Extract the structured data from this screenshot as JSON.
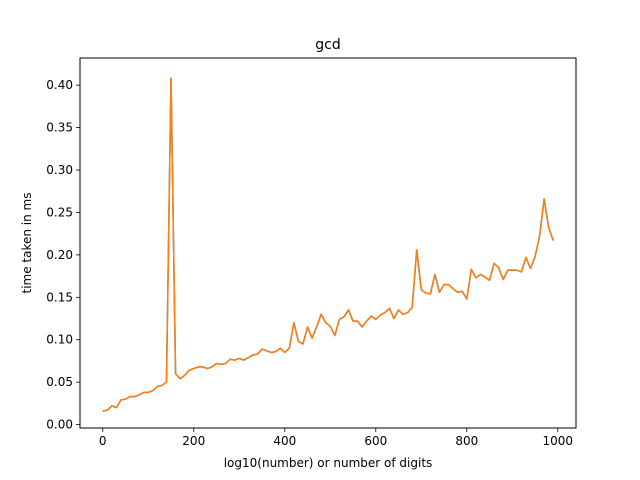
{
  "chart_data": {
    "type": "line",
    "title": "gcd",
    "xlabel": "log10(number) or number of digits",
    "ylabel": "time taken in ms",
    "xlim": [
      -50,
      1040
    ],
    "ylim": [
      -0.004,
      0.432
    ],
    "xticks": [
      0,
      200,
      400,
      600,
      800,
      1000
    ],
    "xtick_labels": [
      "0",
      "200",
      "400",
      "600",
      "800",
      "1000"
    ],
    "yticks": [
      0.0,
      0.05,
      0.1,
      0.15,
      0.2,
      0.25,
      0.3,
      0.35,
      0.4
    ],
    "ytick_labels": [
      "0.00",
      "0.05",
      "0.10",
      "0.15",
      "0.20",
      "0.25",
      "0.30",
      "0.35",
      "0.40"
    ],
    "grid": false,
    "legend": "none",
    "series": [
      {
        "color": "#1f77b4",
        "x": [
          0,
          10,
          20,
          30,
          40,
          50,
          60,
          70,
          80,
          90,
          100,
          110,
          120,
          130,
          140,
          150,
          160,
          170,
          180,
          190,
          200,
          210,
          220,
          230,
          240,
          250,
          260,
          270,
          280,
          290,
          300,
          310,
          320,
          330,
          340,
          350,
          360,
          370,
          380,
          390,
          400,
          410,
          420,
          430,
          440,
          450,
          460,
          470,
          480,
          490,
          500,
          510,
          520,
          530,
          540,
          550,
          560,
          570,
          580,
          590,
          600,
          610,
          620,
          630,
          640,
          650,
          660,
          670,
          680,
          690,
          700,
          710,
          720,
          730,
          740,
          750,
          760,
          770,
          780,
          790,
          800,
          810,
          820,
          830,
          840,
          850,
          860,
          870,
          880,
          890,
          900,
          910,
          920,
          930,
          940,
          950,
          960,
          970,
          980,
          990
        ],
        "y": [
          0.016,
          0.017,
          0.022,
          0.02,
          0.029,
          0.03,
          0.033,
          0.033,
          0.035,
          0.038,
          0.038,
          0.04,
          0.045,
          0.046,
          0.05,
          0.408,
          0.06,
          0.054,
          0.058,
          0.064,
          0.066,
          0.068,
          0.068,
          0.066,
          0.068,
          0.072,
          0.071,
          0.072,
          0.077,
          0.076,
          0.078,
          0.076,
          0.079,
          0.082,
          0.083,
          0.089,
          0.087,
          0.085,
          0.086,
          0.09,
          0.085,
          0.09,
          0.12,
          0.098,
          0.095,
          0.115,
          0.102,
          0.115,
          0.13,
          0.12,
          0.116,
          0.105,
          0.124,
          0.127,
          0.135,
          0.122,
          0.122,
          0.115,
          0.122,
          0.128,
          0.124,
          0.129,
          0.132,
          0.137,
          0.125,
          0.135,
          0.13,
          0.132,
          0.138,
          0.206,
          0.159,
          0.155,
          0.154,
          0.177,
          0.156,
          0.165,
          0.165,
          0.16,
          0.156,
          0.157,
          0.148,
          0.183,
          0.173,
          0.177,
          0.174,
          0.17,
          0.19,
          0.185,
          0.171,
          0.182,
          0.182,
          0.182,
          0.18,
          0.197,
          0.184,
          0.198,
          0.222,
          0.266,
          0.232,
          0.217
        ]
      },
      {
        "color": "#ff7f0e",
        "x": [
          0,
          10,
          20,
          30,
          40,
          50,
          60,
          70,
          80,
          90,
          100,
          110,
          120,
          130,
          140,
          150,
          160,
          170,
          180,
          190,
          200,
          210,
          220,
          230,
          240,
          250,
          260,
          270,
          280,
          290,
          300,
          310,
          320,
          330,
          340,
          350,
          360,
          370,
          380,
          390,
          400,
          410,
          420,
          430,
          440,
          450,
          460,
          470,
          480,
          490,
          500,
          510,
          520,
          530,
          540,
          550,
          560,
          570,
          580,
          590,
          600,
          610,
          620,
          630,
          640,
          650,
          660,
          670,
          680,
          690,
          700,
          710,
          720,
          730,
          740,
          750,
          760,
          770,
          780,
          790,
          800,
          810,
          820,
          830,
          840,
          850,
          860,
          870,
          880,
          890,
          900,
          910,
          920,
          930,
          940,
          950,
          960,
          970,
          980,
          990
        ],
        "y": [
          0.016,
          0.017,
          0.022,
          0.02,
          0.029,
          0.03,
          0.033,
          0.033,
          0.035,
          0.038,
          0.038,
          0.04,
          0.045,
          0.046,
          0.05,
          0.408,
          0.06,
          0.054,
          0.058,
          0.064,
          0.066,
          0.068,
          0.068,
          0.066,
          0.068,
          0.072,
          0.071,
          0.072,
          0.077,
          0.076,
          0.078,
          0.076,
          0.079,
          0.082,
          0.083,
          0.089,
          0.087,
          0.085,
          0.086,
          0.09,
          0.085,
          0.09,
          0.12,
          0.098,
          0.095,
          0.115,
          0.102,
          0.115,
          0.13,
          0.12,
          0.116,
          0.105,
          0.124,
          0.127,
          0.135,
          0.122,
          0.122,
          0.115,
          0.122,
          0.128,
          0.124,
          0.129,
          0.132,
          0.137,
          0.125,
          0.135,
          0.13,
          0.132,
          0.138,
          0.206,
          0.159,
          0.155,
          0.154,
          0.177,
          0.156,
          0.165,
          0.165,
          0.16,
          0.156,
          0.157,
          0.148,
          0.183,
          0.173,
          0.177,
          0.174,
          0.17,
          0.19,
          0.185,
          0.171,
          0.182,
          0.182,
          0.182,
          0.18,
          0.197,
          0.184,
          0.198,
          0.222,
          0.266,
          0.232,
          0.217
        ]
      }
    ]
  }
}
